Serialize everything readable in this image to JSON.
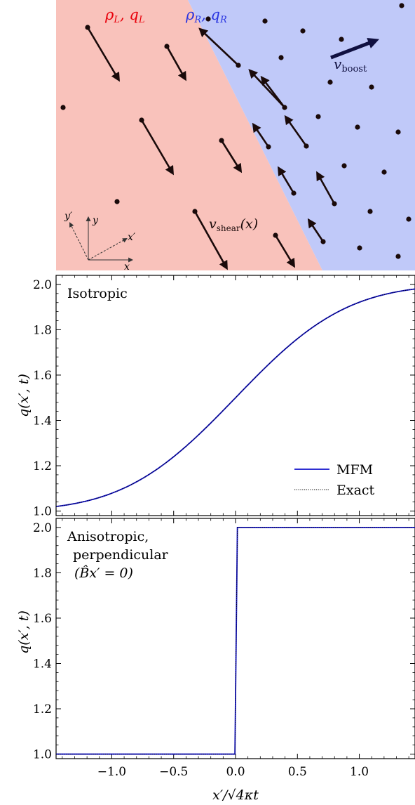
{
  "diagram": {
    "left_label": "ρL, qL",
    "left_label_sym": "ρ",
    "left_label_sub": "L",
    "left_label_q": "q",
    "right_label_sym": "ρ",
    "right_label_sub": "R",
    "right_label_q": "q",
    "boost_label_v": "v",
    "boost_label_sub": "boost",
    "shear_label_v": "v",
    "shear_label_sub": "shear",
    "shear_label_arg": "(x)",
    "axis_x": "x",
    "axis_y": "y",
    "axis_xp": "x′",
    "axis_yp": "y′",
    "colors": {
      "left_region": "#f9c2bb",
      "right_region": "#c0c9f9",
      "left_label": "#e8000b",
      "right_label": "#2a35e0",
      "particles": "#1a0a0a",
      "boost_arrow": "#101040"
    }
  },
  "chart_data": [
    {
      "type": "line",
      "panel_label": "Isotropic",
      "ylabel": "q(x′, t)",
      "xlim": [
        -1.45,
        1.45
      ],
      "ylim": [
        0.98,
        2.04
      ],
      "yticks": [
        1.0,
        1.2,
        1.4,
        1.6,
        1.8,
        2.0
      ],
      "ytick_labels": [
        "1.0",
        "1.2",
        "1.4",
        "1.6",
        "1.8",
        "2.0"
      ],
      "series": [
        {
          "name": "MFM",
          "style": "solid",
          "color": "#1010cc",
          "function": "1.5 + 0.5*erf(x)"
        },
        {
          "name": "Exact",
          "style": "dotted",
          "color": "#000000",
          "function": "1.5 + 0.5*erf(x)"
        }
      ],
      "legend": "bottom-right"
    },
    {
      "type": "line",
      "panel_label_lines": [
        "Anisotropic,",
        "perpendicular",
        "(B̂x′ = 0)"
      ],
      "ylabel": "q(x′, t)",
      "xlabel": "x′/√4κt",
      "xlim": [
        -1.45,
        1.45
      ],
      "ylim": [
        0.98,
        2.04
      ],
      "xticks": [
        -1.0,
        -0.5,
        0.0,
        0.5,
        1.0
      ],
      "xtick_labels": [
        "−1.0",
        "−0.5",
        "0.0",
        "0.5",
        "1.0"
      ],
      "yticks": [
        1.0,
        1.2,
        1.4,
        1.6,
        1.8,
        2.0
      ],
      "ytick_labels": [
        "1.0",
        "1.2",
        "1.4",
        "1.6",
        "1.8",
        "2.0"
      ],
      "series": [
        {
          "name": "MFM",
          "style": "solid",
          "color": "#1010cc",
          "function": "step at x=0 from 1.0 to 2.0"
        },
        {
          "name": "Exact",
          "style": "dotted",
          "color": "#000000",
          "function": "step at x=0 from 1.0 to 2.0"
        }
      ]
    }
  ]
}
